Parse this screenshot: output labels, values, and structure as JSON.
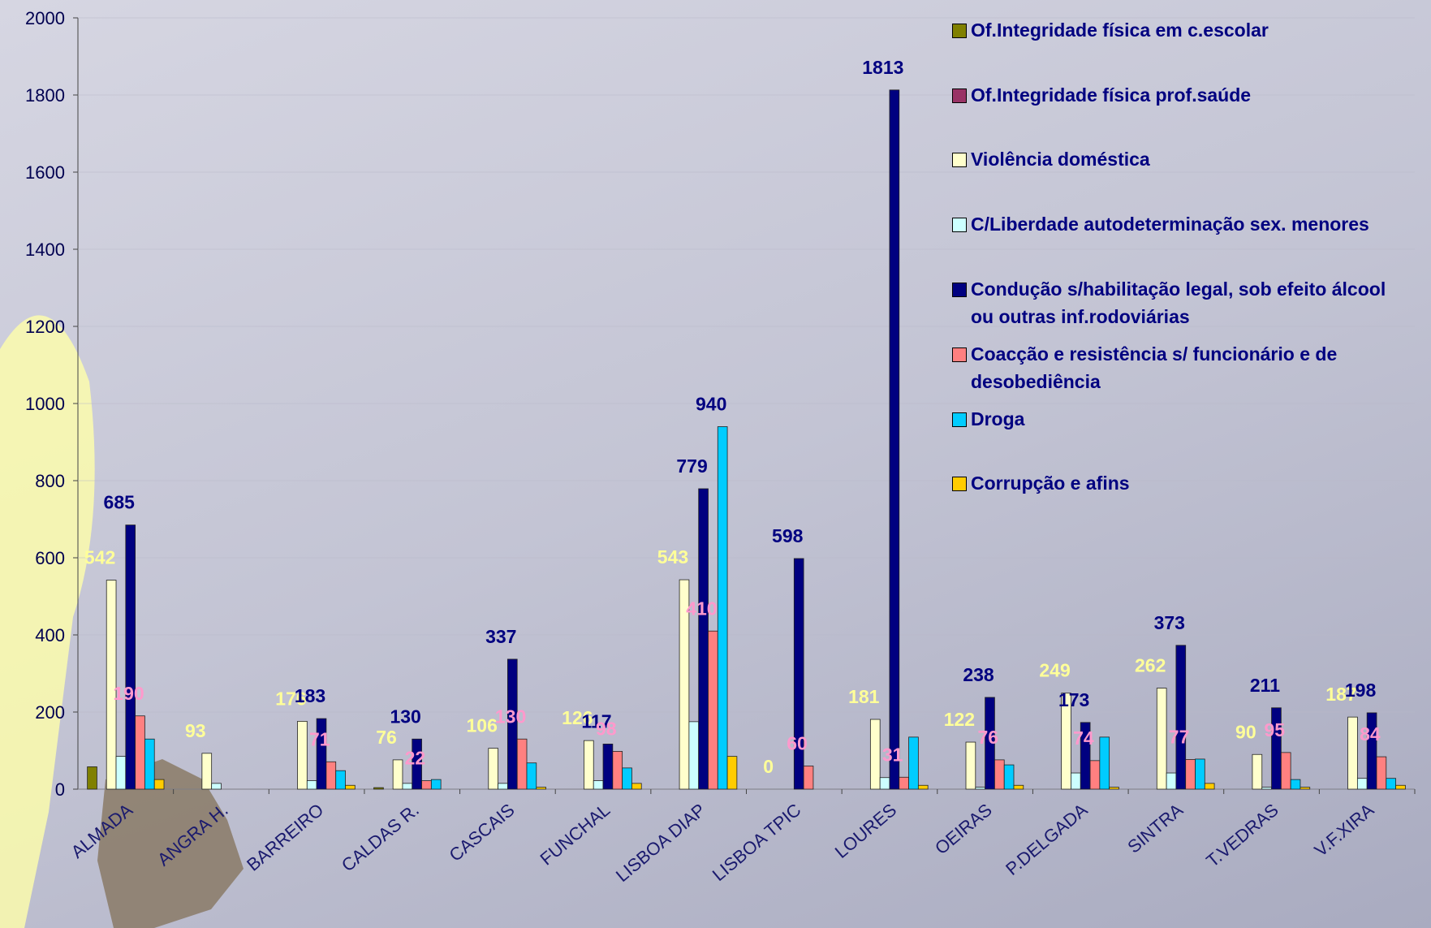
{
  "chart_data": {
    "type": "bar",
    "categories": [
      "ALMADA",
      "ANGRA H.",
      "BARREIRO",
      "CALDAS R.",
      "CASCAIS",
      "FUNCHAL",
      "LISBOA DIAP",
      "LISBOA TPIC",
      "LOURES",
      "OEIRAS",
      "P.DELGADA",
      "SINTRA",
      "T.VEDRAS",
      "V.F.XIRA"
    ],
    "series": [
      {
        "name": "Of.Integridade física em c.escolar",
        "color": "#808000",
        "values": [
          58,
          0,
          0,
          4,
          0,
          0,
          0,
          0,
          0,
          0,
          0,
          0,
          0,
          0
        ]
      },
      {
        "name": "Of.Integridade física prof.saúde",
        "color": "#993366",
        "values": [
          0,
          0,
          0,
          0,
          0,
          0,
          0,
          0,
          0,
          0,
          0,
          0,
          0,
          0
        ]
      },
      {
        "name": "Violência doméstica",
        "color": "#ffffcc",
        "label_color": "#ffff99",
        "values": [
          542,
          93,
          176,
          76,
          106,
          126,
          543,
          0,
          181,
          122,
          249,
          262,
          90,
          187
        ],
        "value_labels": [
          "542",
          "93",
          "176",
          "76",
          "106",
          "126",
          "543",
          "0",
          "181",
          "122",
          "249",
          "262",
          "90",
          "187"
        ]
      },
      {
        "name": "C/Liberdade autodeterminação sex. menores",
        "color": "#ccffff",
        "values": [
          85,
          15,
          22,
          15,
          15,
          22,
          175,
          0,
          30,
          5,
          42,
          42,
          5,
          28
        ]
      },
      {
        "name": "Condução s/habilitação legal, sob efeito álcool ou outras inf.rodoviárias",
        "color": "#000080",
        "label_color": "#000080",
        "values": [
          685,
          null,
          183,
          130,
          337,
          117,
          779,
          598,
          1813,
          238,
          173,
          373,
          211,
          198
        ],
        "value_labels": [
          "685",
          null,
          "183",
          "130",
          "337",
          "117",
          "779",
          "598",
          "1813",
          "238",
          "173",
          "373",
          "211",
          "198"
        ]
      },
      {
        "name": "Coacção e resistência s/ funcionário e de desobediência",
        "color": "#ff8080",
        "label_color": "#ff99cc",
        "values": [
          190,
          null,
          71,
          22,
          130,
          98,
          410,
          60,
          31,
          76,
          74,
          77,
          95,
          84
        ],
        "value_labels": [
          "190",
          null,
          "71",
          "22",
          "130",
          "98",
          "410",
          "60",
          "31",
          "76",
          "74",
          "77",
          "95",
          "84"
        ]
      },
      {
        "name": "Droga",
        "color": "#00ccff",
        "label_color": "#000080",
        "values": [
          130,
          null,
          48,
          25,
          68,
          55,
          940,
          0,
          135,
          63,
          135,
          78,
          25,
          28
        ],
        "value_labels": [
          null,
          null,
          null,
          null,
          null,
          null,
          "940",
          null,
          null,
          null,
          null,
          null,
          null,
          null
        ]
      },
      {
        "name": "Corrupção e afins",
        "color": "#ffcc00",
        "values": [
          25,
          0,
          10,
          0,
          5,
          15,
          85,
          0,
          10,
          10,
          5,
          15,
          5,
          10
        ]
      }
    ],
    "ylim": [
      0,
      2000
    ],
    "yticks": [
      0,
      200,
      400,
      600,
      800,
      1000,
      1200,
      1400,
      1600,
      1800,
      2000
    ],
    "grid": true
  }
}
